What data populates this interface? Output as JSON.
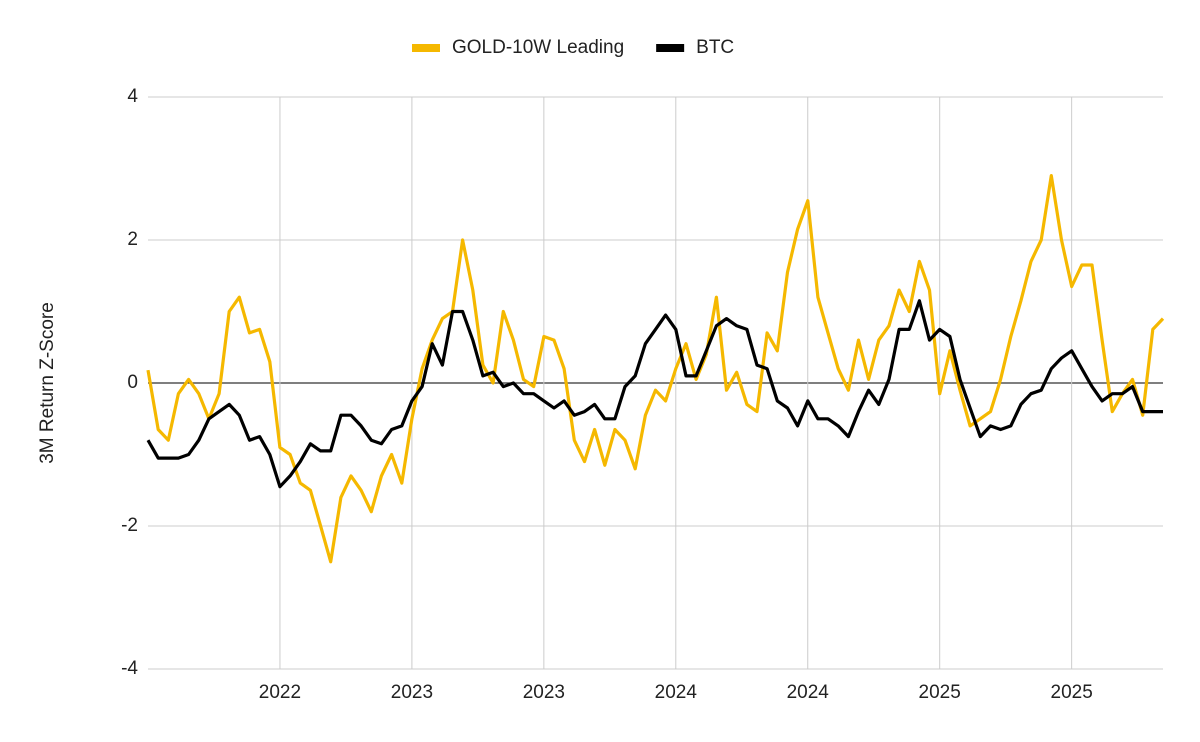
{
  "chart_data": {
    "type": "line",
    "y_label": "3M Return Z-Score",
    "categories": [
      null,
      null,
      null,
      null,
      null,
      null,
      null,
      null,
      null,
      null,
      null,
      null,
      null,
      "2022",
      null,
      null,
      null,
      null,
      null,
      null,
      null,
      null,
      null,
      null,
      null,
      null,
      "2023",
      null,
      null,
      null,
      null,
      null,
      null,
      null,
      null,
      null,
      null,
      null,
      null,
      "2023",
      null,
      null,
      null,
      null,
      null,
      null,
      null,
      null,
      null,
      null,
      null,
      null,
      "2024",
      null,
      null,
      null,
      null,
      null,
      null,
      null,
      null,
      null,
      null,
      null,
      null,
      "2024",
      null,
      null,
      null,
      null,
      null,
      null,
      null,
      null,
      null,
      null,
      null,
      null,
      "2025",
      null,
      null,
      null,
      null,
      null,
      null,
      null,
      null,
      null,
      null,
      null,
      null,
      "2025",
      null,
      null,
      null,
      null,
      null,
      null,
      null,
      null,
      null
    ],
    "series": [
      {
        "name": "GOLD-10W Leading",
        "color": "#f5b800",
        "values": [
          0.18,
          -0.65,
          -0.8,
          -0.15,
          0.05,
          -0.15,
          -0.5,
          -0.15,
          1.0,
          1.2,
          0.7,
          0.75,
          0.3,
          -0.9,
          -1.0,
          -1.4,
          -1.5,
          -2.0,
          -2.5,
          -1.6,
          -1.3,
          -1.5,
          -1.8,
          -1.3,
          -1.0,
          -1.4,
          -0.5,
          0.2,
          0.6,
          0.9,
          1.0,
          2.0,
          1.3,
          0.25,
          0.0,
          1.0,
          0.6,
          0.05,
          -0.05,
          0.65,
          0.6,
          0.2,
          -0.8,
          -1.1,
          -0.65,
          -1.15,
          -0.65,
          -0.8,
          -1.2,
          -0.45,
          -0.1,
          -0.25,
          0.2,
          0.55,
          0.05,
          0.4,
          1.2,
          -0.1,
          0.15,
          -0.3,
          -0.4,
          0.7,
          0.45,
          1.55,
          2.15,
          2.55,
          1.2,
          0.7,
          0.2,
          -0.1,
          0.6,
          0.05,
          0.6,
          0.8,
          1.3,
          1.0,
          1.7,
          1.3,
          -0.15,
          0.45,
          -0.1,
          -0.6,
          -0.5,
          -0.4,
          0.05,
          0.65,
          1.15,
          1.7,
          2.0,
          2.9,
          2.0,
          1.35,
          1.65,
          1.65,
          0.6,
          -0.4,
          -0.15,
          0.05,
          -0.45,
          0.75,
          0.9
        ]
      },
      {
        "name": "BTC",
        "color": "#000000",
        "values": [
          -0.8,
          -1.05,
          -1.05,
          -1.05,
          -1.0,
          -0.8,
          -0.5,
          -0.4,
          -0.3,
          -0.45,
          -0.8,
          -0.75,
          -1.0,
          -1.45,
          -1.3,
          -1.1,
          -0.85,
          -0.95,
          -0.95,
          -0.45,
          -0.45,
          -0.6,
          -0.8,
          -0.85,
          -0.65,
          -0.6,
          -0.25,
          -0.05,
          0.55,
          0.25,
          1.0,
          1.0,
          0.6,
          0.1,
          0.15,
          -0.05,
          0.0,
          -0.15,
          -0.15,
          -0.25,
          -0.35,
          -0.25,
          -0.45,
          -0.4,
          -0.3,
          -0.5,
          -0.5,
          -0.05,
          0.1,
          0.55,
          0.75,
          0.95,
          0.75,
          0.1,
          0.1,
          0.45,
          0.8,
          0.9,
          0.8,
          0.75,
          0.25,
          0.2,
          -0.25,
          -0.35,
          -0.6,
          -0.25,
          -0.5,
          -0.5,
          -0.6,
          -0.75,
          -0.4,
          -0.1,
          -0.3,
          0.05,
          0.75,
          0.75,
          1.15,
          0.6,
          0.75,
          0.65,
          0.05,
          -0.35,
          -0.75,
          -0.6,
          -0.65,
          -0.6,
          -0.3,
          -0.15,
          -0.1,
          0.2,
          0.35,
          0.45,
          0.2,
          -0.05,
          -0.25,
          -0.15,
          -0.15,
          -0.05,
          -0.4,
          -0.4,
          -0.4
        ]
      }
    ],
    "ylim": [
      -4,
      4
    ],
    "yticks": [
      -4,
      -2,
      0,
      2,
      4
    ],
    "grid": true,
    "legend": "top"
  }
}
